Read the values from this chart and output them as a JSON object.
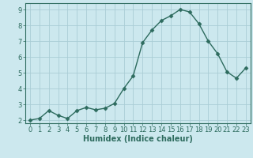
{
  "x": [
    0,
    1,
    2,
    3,
    4,
    5,
    6,
    7,
    8,
    9,
    10,
    11,
    12,
    13,
    14,
    15,
    16,
    17,
    18,
    19,
    20,
    21,
    22,
    23
  ],
  "y": [
    2.0,
    2.1,
    2.6,
    2.3,
    2.1,
    2.6,
    2.8,
    2.65,
    2.75,
    3.05,
    4.0,
    4.8,
    6.9,
    7.7,
    8.3,
    8.6,
    9.0,
    8.85,
    8.1,
    7.0,
    6.2,
    5.05,
    4.65,
    5.3
  ],
  "line_color": "#2d6b5e",
  "marker": "D",
  "markersize": 2.5,
  "linewidth": 1.0,
  "bg_color": "#cce8ee",
  "grid_color": "#aacdd5",
  "xlabel": "Humidex (Indice chaleur)",
  "xlabel_fontsize": 7.0,
  "tick_fontsize": 6.0,
  "ylim": [
    1.8,
    9.4
  ],
  "xlim": [
    -0.5,
    23.5
  ],
  "yticks": [
    2,
    3,
    4,
    5,
    6,
    7,
    8,
    9
  ],
  "xtick_labels": [
    "0",
    "1",
    "2",
    "3",
    "4",
    "5",
    "6",
    "7",
    "8",
    "9",
    "10",
    "11",
    "12",
    "13",
    "14",
    "15",
    "16",
    "17",
    "18",
    "19",
    "20",
    "21",
    "22",
    "23"
  ]
}
